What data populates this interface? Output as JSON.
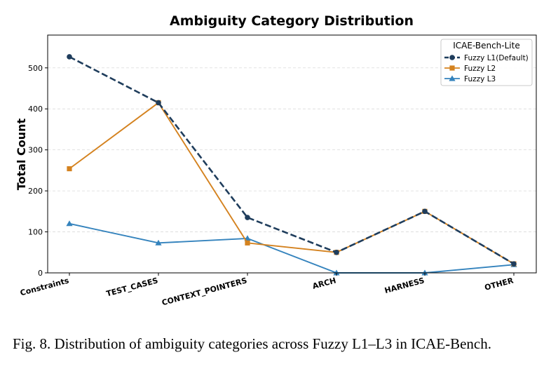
{
  "chart_data": {
    "type": "line",
    "title": "Ambiguity Category Distribution",
    "xlabel": "",
    "ylabel": "Total Count",
    "categories": [
      "Constraints",
      "TEST_CASES",
      "CONTEXT_POINTERS",
      "ARCH",
      "HARNESS",
      "OTHER"
    ],
    "ylim": [
      0,
      580
    ],
    "yticks": [
      0,
      100,
      200,
      300,
      400,
      500
    ],
    "grid": true,
    "legend": {
      "title": "ICAE-Bench-Lite",
      "placement": "top-right"
    },
    "series": [
      {
        "name": "Fuzzy L1(Default)",
        "values": [
          527,
          415,
          135,
          50,
          150,
          22
        ],
        "color": "#1f3d5c",
        "style": "dashed",
        "marker": "circle"
      },
      {
        "name": "Fuzzy L2",
        "values": [
          254,
          415,
          73,
          50,
          150,
          22
        ],
        "color": "#d4821f",
        "style": "solid",
        "marker": "square"
      },
      {
        "name": "Fuzzy L3",
        "values": [
          120,
          73,
          84,
          0,
          0,
          20
        ],
        "color": "#3483bd",
        "style": "solid",
        "marker": "triangle"
      }
    ]
  },
  "caption": "Fig. 8.  Distribution of ambiguity categories across Fuzzy L1–L3 in ICAE-Bench."
}
